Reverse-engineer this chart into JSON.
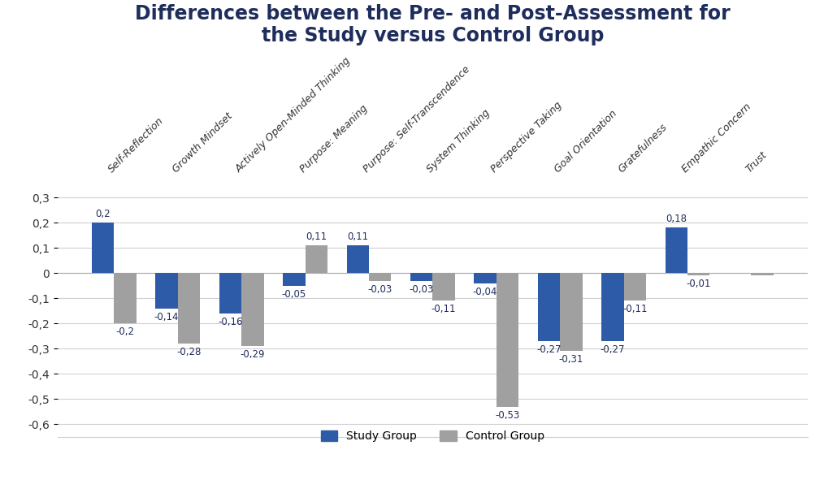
{
  "title": "Differences between the Pre- and Post-Assessment for\nthe Study versus Control Group",
  "categories": [
    "Self-Reflection",
    "Growth Mindset",
    "Actively Open-Minded Thinking",
    "Purpose: Meaning",
    "Purpose: Self-Transcendence",
    "System Thinking",
    "Perspective Taking",
    "Goal Orientation",
    "Gratefulness",
    "Empathic Concern",
    "Trust"
  ],
  "study_group": [
    0.2,
    -0.14,
    -0.16,
    -0.05,
    0.11,
    -0.03,
    -0.04,
    -0.27,
    -0.27,
    0.18,
    0.0
  ],
  "control_group": [
    -0.2,
    -0.28,
    -0.29,
    0.11,
    -0.03,
    -0.11,
    -0.53,
    -0.31,
    -0.11,
    -0.01,
    -0.01
  ],
  "study_labels": [
    "0,2",
    "-0,14",
    "-0,16",
    "-0,05",
    "0,11",
    "-0,03",
    "-0,04",
    "-0,27",
    "-0,27",
    "0,18",
    ""
  ],
  "control_labels": [
    "-0,2",
    "-0,28",
    "-0,29",
    "0,11",
    "-0,03",
    "-0,11",
    "-0,53",
    "-0,31",
    "-0,11",
    "-0,01",
    ""
  ],
  "study_color": "#2E5BA8",
  "control_color": "#A0A0A0",
  "ylim": [
    -0.65,
    0.36
  ],
  "yticks": [
    -0.6,
    -0.5,
    -0.4,
    -0.3,
    -0.2,
    -0.1,
    0.0,
    0.1,
    0.2,
    0.3
  ],
  "ytick_labels": [
    "-0,6",
    "-0,5",
    "-0,4",
    "-0,3",
    "-0,2",
    "-0,1",
    "0",
    "0,1",
    "0,2",
    "0,3"
  ],
  "title_fontsize": 17,
  "legend_study": "Study Group",
  "legend_control": "Control Group",
  "bar_width": 0.35
}
